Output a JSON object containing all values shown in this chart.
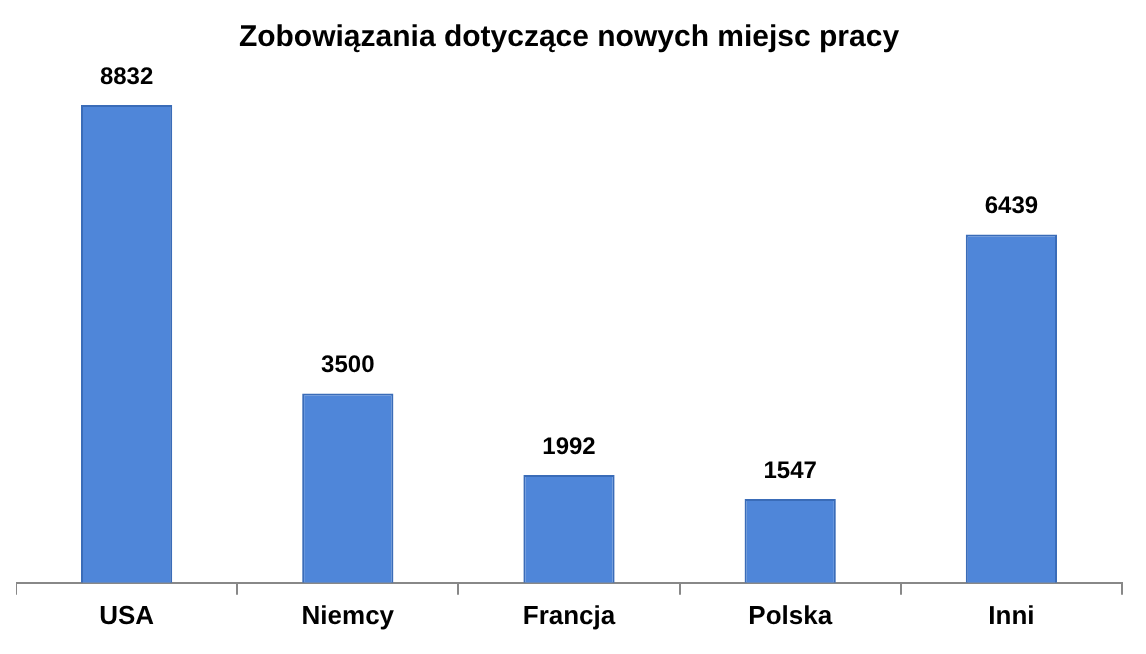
{
  "chart_data": {
    "type": "bar",
    "title": "Zobowiązania dotyczące nowych miejsc pracy",
    "categories": [
      "USA",
      "Niemcy",
      "Francja",
      "Polska",
      "Inni"
    ],
    "values": [
      8832,
      3500,
      1992,
      1547,
      6439
    ],
    "color": "#4f86d9",
    "data_labels": true,
    "grid": false,
    "legend": false
  }
}
